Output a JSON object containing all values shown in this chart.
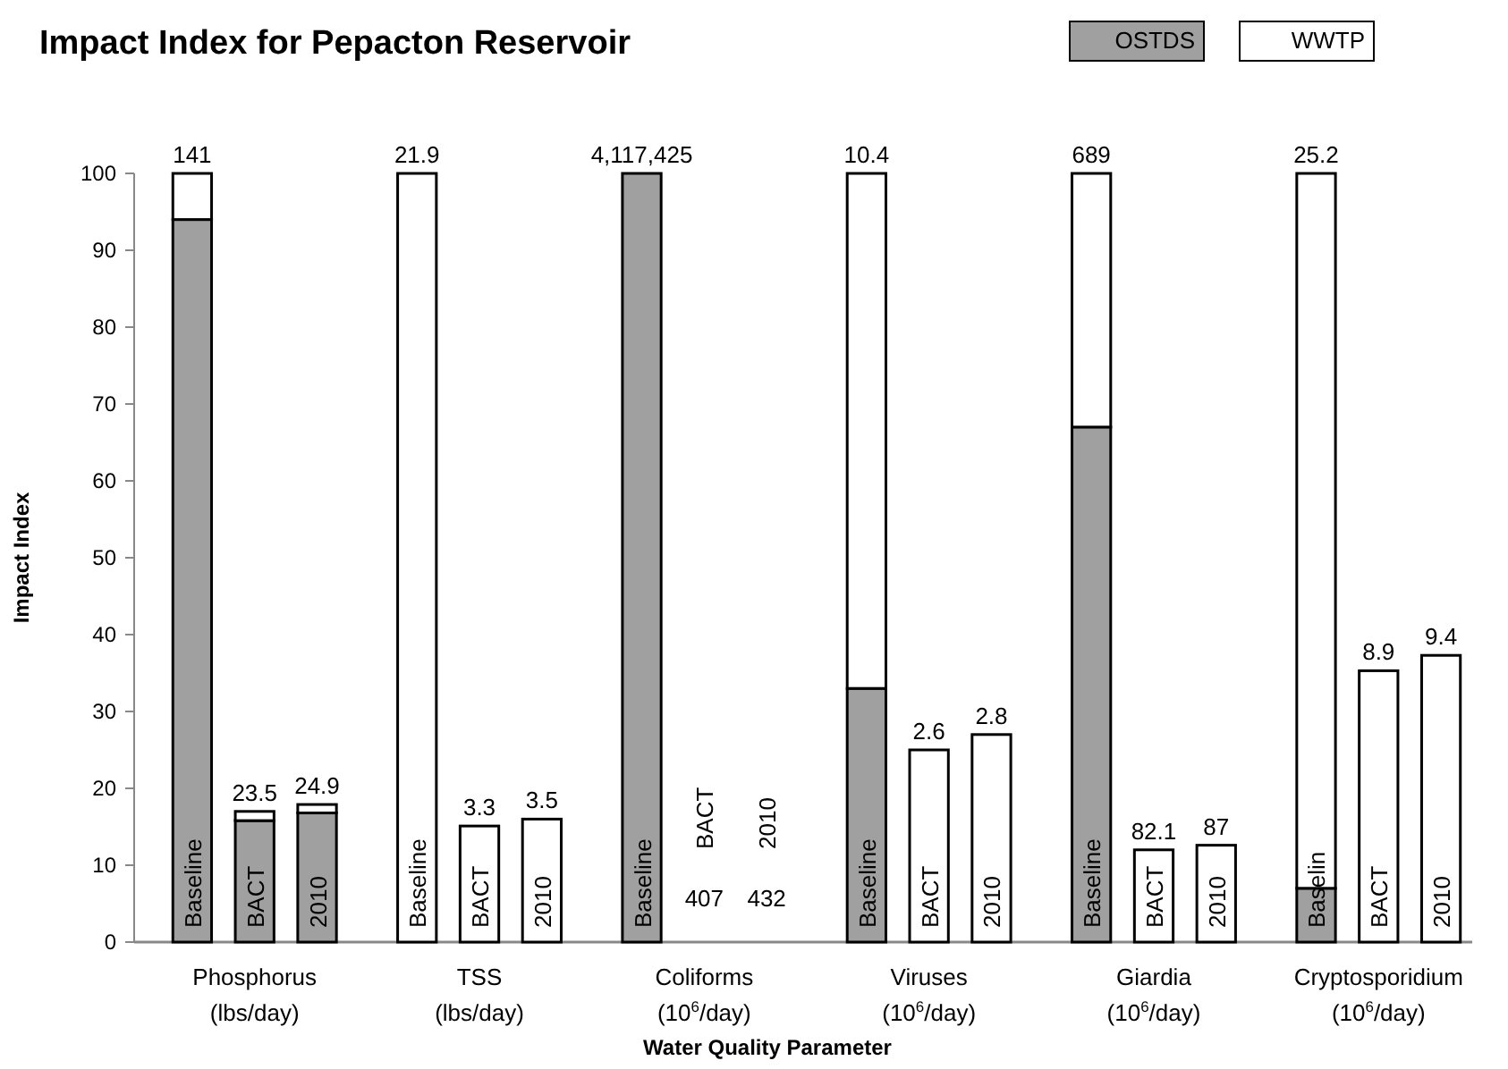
{
  "chart_data": {
    "type": "bar",
    "title": "Impact Index for Pepacton Reservoir",
    "xlabel": "Water Quality Parameter",
    "ylabel": "Impact Index",
    "categories": [
      "Baseline",
      "BACT",
      "2010",
      "Baseline",
      "BACT",
      "2010",
      "Baseline",
      "BACT",
      "2010",
      "Baseline",
      "BACT",
      "2010",
      "Baseline",
      "BACT",
      "2010",
      "Baselin",
      "BACT",
      "2010"
    ],
    "series": [
      {
        "name": "OSTDS",
        "color": "#a0a0a0",
        "values": [
          94,
          15.8,
          16.8,
          0,
          0,
          0,
          100,
          0,
          0,
          33,
          0,
          0,
          67,
          0,
          0,
          7,
          0,
          0
        ]
      },
      {
        "name": "WWTP",
        "color": "#ffffff",
        "values": [
          6,
          1.2,
          1.1,
          100,
          15.1,
          16,
          0,
          0,
          0,
          67,
          25,
          27,
          33,
          12,
          12.6,
          93,
          35.3,
          37.3
        ]
      }
    ],
    "stacked": true,
    "annotations": [
      "Phosphorus\n(lbs/day)",
      "TSS\n(lbs/day)",
      "Coliforms\n(10$^{6}$/day)",
      "Viruses\n(10$^{6}$/day)",
      "Giardia\n(10$^{6}$/day)",
      "Cryptosporidium\n(10$^{6}$/day)",
      {
        "text": "141",
        "y": 100
      },
      {
        "text": "23.5",
        "y": 17
      },
      {
        "text": "24.9",
        "y": 17.9
      },
      {
        "text": "21.9",
        "y": 100
      },
      {
        "text": "3.3",
        "y": 15.1
      },
      {
        "text": "3.5",
        "y": 16
      },
      {
        "text": "4,117,425",
        "y": 100
      },
      "407",
      "432",
      {
        "text": "10.4",
        "y": 100
      },
      {
        "text": "2.6",
        "y": 25
      },
      {
        "text": "2.8",
        "y": 27
      },
      {
        "text": "689",
        "y": 100
      },
      {
        "text": "82.1",
        "y": 12
      },
      {
        "text": "87",
        "y": 12.6
      },
      {
        "text": "25.2",
        "y": 100
      },
      {
        "text": "8.9",
        "y": 35.3
      },
      {
        "text": "9.4",
        "y": 37.3
      }
    ],
    "ylim": [
      0,
      100
    ],
    "yticks": [
      0,
      10,
      20,
      30,
      40,
      50,
      60,
      70,
      80,
      90,
      100
    ],
    "legend": "top right"
  }
}
